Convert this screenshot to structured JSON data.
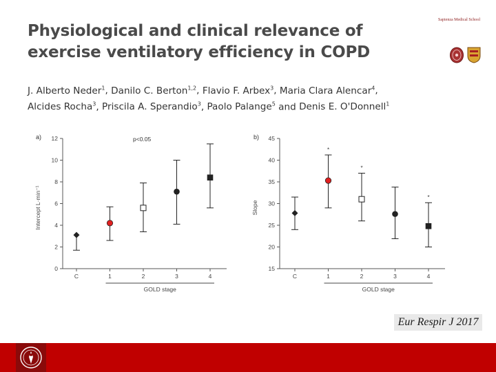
{
  "slide": {
    "title_line1": "Physiological and clinical relevance of",
    "title_line2": "exercise ventilatory efficiency in COPD",
    "authors": [
      {
        "name": "J. Alberto Neder",
        "aff": "1"
      },
      {
        "name": "Danilo C. Berton",
        "aff": "1,2"
      },
      {
        "name": "Flavio F. Arbex",
        "aff": "3"
      },
      {
        "name": "Maria Clara Alencar",
        "aff": "4"
      },
      {
        "name": "Alcides Rocha",
        "aff": "3"
      },
      {
        "name": "Priscila A. Sperandio",
        "aff": "3"
      },
      {
        "name": "Paolo Palange",
        "aff": "5"
      },
      {
        "name": "Denis E. O'Donnell",
        "aff": "1"
      }
    ],
    "logo_text": "Sapienza Medical School",
    "citation": "Eur Respir J 2017",
    "colors": {
      "footer": "#c00000",
      "title": "#4a4a4a",
      "red_marker": "#e02020"
    }
  },
  "chart_data": [
    {
      "type": "scatter",
      "panel_label": "a)",
      "title": "",
      "xlabel": "GOLD stage",
      "ylabel": "Intercept L·min⁻¹",
      "annotation": "p<0.05",
      "categories": [
        "C",
        "1",
        "2",
        "3",
        "4"
      ],
      "ylim": [
        0,
        12
      ],
      "yticks": [
        0,
        2,
        4,
        6,
        8,
        10,
        12
      ],
      "points": [
        {
          "category": "C",
          "mean": 3.1,
          "upper": null,
          "lower": 1.7,
          "marker": "diamond"
        },
        {
          "category": "1",
          "mean": 4.2,
          "upper": 5.7,
          "lower": 2.6,
          "marker": "circle-red"
        },
        {
          "category": "2",
          "mean": 5.6,
          "upper": 7.9,
          "lower": 3.4,
          "marker": "open-square"
        },
        {
          "category": "3",
          "mean": 7.1,
          "upper": 10.0,
          "lower": 4.1,
          "marker": "circle"
        },
        {
          "category": "4",
          "mean": 8.4,
          "upper": 11.5,
          "lower": 5.6,
          "marker": "square"
        }
      ]
    },
    {
      "type": "scatter",
      "panel_label": "b)",
      "title": "",
      "xlabel": "GOLD stage",
      "ylabel": "Slope",
      "categories": [
        "C",
        "1",
        "2",
        "3",
        "4"
      ],
      "ylim": [
        15,
        45
      ],
      "yticks": [
        15,
        20,
        25,
        30,
        35,
        40,
        45
      ],
      "points": [
        {
          "category": "C",
          "mean": 27.8,
          "upper": 31.5,
          "lower": 24.0,
          "marker": "diamond",
          "star": false
        },
        {
          "category": "1",
          "mean": 35.3,
          "upper": 41.2,
          "lower": 29.0,
          "marker": "circle-red",
          "star": true
        },
        {
          "category": "2",
          "mean": 31.0,
          "upper": 37.0,
          "lower": 26.0,
          "marker": "open-square",
          "star": true
        },
        {
          "category": "3",
          "mean": 27.6,
          "upper": 33.8,
          "lower": 21.9,
          "marker": "circle",
          "star": false
        },
        {
          "category": "4",
          "mean": 24.8,
          "upper": 30.2,
          "lower": 20.0,
          "marker": "square",
          "star": true
        }
      ]
    }
  ]
}
